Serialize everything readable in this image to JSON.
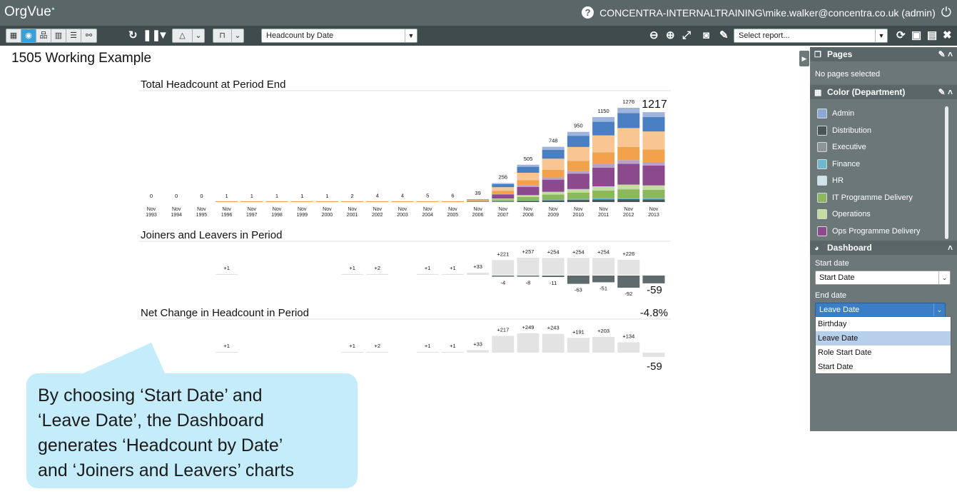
{
  "app": {
    "logo": "OrgVue",
    "user": "CONCENTRA-INTERNALTRAINING\\mike.walker@concentra.co.uk (admin)"
  },
  "toolbar": {
    "report_select": "Headcount by Date",
    "saved_report_placeholder": "Select report..."
  },
  "page": {
    "title": "1505 Working Example"
  },
  "right_panel": {
    "pages": {
      "title": "Pages",
      "empty_text": "No pages selected"
    },
    "color": {
      "title": "Color (Department)",
      "items": [
        {
          "label": "Admin",
          "color": "#8ea8d6"
        },
        {
          "label": "Distribution",
          "color": "#4a5556"
        },
        {
          "label": "Executive",
          "color": "#8f9495"
        },
        {
          "label": "Finance",
          "color": "#6eb7cc"
        },
        {
          "label": "HR",
          "color": "#cde6ec"
        },
        {
          "label": "IT Programme Delivery",
          "color": "#8ab85a"
        },
        {
          "label": "Operations",
          "color": "#c3dca0"
        },
        {
          "label": "Ops Programme Delivery",
          "color": "#8a4a8c"
        }
      ]
    },
    "dashboard": {
      "title": "Dashboard",
      "start_label": "Start date",
      "start_value": "Start Date",
      "end_label": "End date",
      "end_value": "Leave Date",
      "options": [
        "Birthday",
        "Leave Date",
        "Role Start Date",
        "Start Date"
      ]
    }
  },
  "callout": {
    "text_lines": [
      "By choosing ‘Start Date’ and",
      "‘Leave Date’, the Dashboard",
      "generates ‘Headcount by Date’",
      "and ‘Joiners and Leavers’ charts"
    ]
  },
  "chart_data": [
    {
      "type": "bar",
      "title": "Total Headcount at Period End",
      "stacked": true,
      "categories": [
        "Nov 1993",
        "Nov 1994",
        "Nov 1995",
        "Nov 1996",
        "Nov 1997",
        "Nov 1998",
        "Nov 1999",
        "Nov 2000",
        "Nov 2001",
        "Nov 2002",
        "Nov 2003",
        "Nov 2004",
        "Nov 2005",
        "Nov 2006",
        "Nov 2007",
        "Nov 2008",
        "Nov 2009",
        "Nov 2010",
        "Nov 2011",
        "Nov 2012",
        "Nov 2013"
      ],
      "values": [
        0,
        0,
        0,
        1,
        1,
        1,
        1,
        1,
        2,
        4,
        4,
        5,
        6,
        39,
        256,
        505,
        748,
        950,
        1150,
        1276,
        1217
      ],
      "latest_label": "1217",
      "segment_colors": [
        "#4a5556",
        "#6eb7cc",
        "#8ab85a",
        "#c3dca0",
        "#8a4a8c",
        "#b9a0c8",
        "#f2a24a",
        "#f9c592",
        "#4a7fc1",
        "#9fb4dd"
      ]
    },
    {
      "type": "bar",
      "title": "Joiners and Leavers in Period",
      "categories": [
        "Nov 1993",
        "Nov 1994",
        "Nov 1995",
        "Nov 1996",
        "Nov 1997",
        "Nov 1998",
        "Nov 1999",
        "Nov 2000",
        "Nov 2001",
        "Nov 2002",
        "Nov 2003",
        "Nov 2004",
        "Nov 2005",
        "Nov 2006",
        "Nov 2007",
        "Nov 2008",
        "Nov 2009",
        "Nov 2010",
        "Nov 2011",
        "Nov 2012",
        "Nov 2013"
      ],
      "joiners": [
        0,
        0,
        0,
        1,
        0,
        0,
        0,
        0,
        1,
        2,
        0,
        1,
        1,
        33,
        221,
        257,
        254,
        254,
        254,
        226,
        0
      ],
      "leavers": [
        0,
        0,
        0,
        0,
        0,
        0,
        0,
        0,
        0,
        0,
        0,
        0,
        0,
        0,
        -4,
        -8,
        -11,
        -63,
        -51,
        -92,
        -59
      ],
      "joiner_labels": [
        "",
        "",
        "",
        "+1",
        "",
        "",
        "",
        "",
        "+1",
        "+2",
        "",
        "+1",
        "+1",
        "+33",
        "+221",
        "+257",
        "+254",
        "+254",
        "+254",
        "+226",
        ""
      ],
      "leaver_labels": [
        "",
        "",
        "",
        "",
        "",
        "",
        "",
        "",
        "",
        "",
        "",
        "",
        "",
        "",
        "-4",
        "-8",
        "-11",
        "-63",
        "-51",
        "-92",
        ""
      ],
      "latest_label": "-59"
    },
    {
      "type": "bar",
      "title": "Net Change in Headcount in Period",
      "categories": [
        "Nov 1993",
        "Nov 1994",
        "Nov 1995",
        "Nov 1996",
        "Nov 1997",
        "Nov 1998",
        "Nov 1999",
        "Nov 2000",
        "Nov 2001",
        "Nov 2002",
        "Nov 2003",
        "Nov 2004",
        "Nov 2005",
        "Nov 2006",
        "Nov 2007",
        "Nov 2008",
        "Nov 2009",
        "Nov 2010",
        "Nov 2011",
        "Nov 2012",
        "Nov 2013"
      ],
      "values": [
        0,
        0,
        0,
        1,
        0,
        0,
        0,
        0,
        1,
        2,
        0,
        1,
        1,
        33,
        217,
        249,
        243,
        191,
        203,
        134,
        -59
      ],
      "value_labels": [
        "",
        "",
        "",
        "+1",
        "",
        "",
        "",
        "",
        "+1",
        "+2",
        "",
        "+1",
        "+1",
        "+33",
        "+217",
        "+249",
        "+243",
        "+191",
        "+203",
        "+134",
        ""
      ],
      "latest_label": "-59",
      "latest_pct": "-4.8%"
    }
  ]
}
